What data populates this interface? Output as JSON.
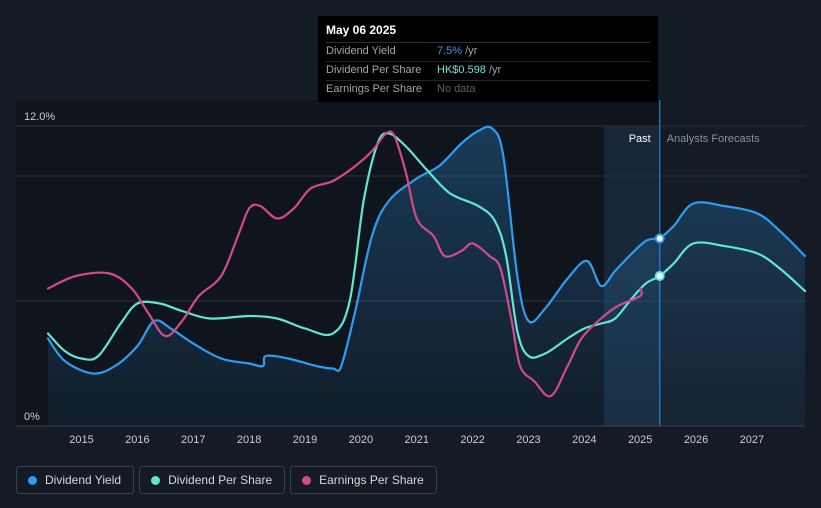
{
  "tooltip": {
    "date": "May 06 2025",
    "rows": [
      {
        "label": "Dividend Yield",
        "value": "7.5%",
        "unit": "/yr"
      },
      {
        "label": "Dividend Per Share",
        "value": "HK$0.598",
        "unit": "/yr"
      },
      {
        "label": "Earnings Per Share",
        "value": "No data",
        "unit": ""
      }
    ]
  },
  "legend": [
    {
      "label": "Dividend Yield",
      "color": "#2e9df0"
    },
    {
      "label": "Dividend Per Share",
      "color": "#62e6d4"
    },
    {
      "label": "Earnings Per Share",
      "color": "#d34a8c"
    }
  ],
  "chart_data": {
    "type": "line",
    "title": "",
    "xlabel": "",
    "ylabel": "",
    "xlim": [
      2014.3,
      2027.95
    ],
    "ylim": [
      0,
      12
    ],
    "x_ticks": [
      "2015",
      "2016",
      "2017",
      "2018",
      "2019",
      "2020",
      "2021",
      "2022",
      "2023",
      "2024",
      "2025",
      "2026",
      "2027"
    ],
    "y_ticks": [
      {
        "value": 12,
        "label": "12.0%"
      },
      {
        "value": 0,
        "label": "0%"
      }
    ],
    "grid": true,
    "past_label": "Past",
    "forecast_label": "Analysts Forecasts",
    "past_band": [
      2024.35,
      2025.35
    ],
    "forecast_start": 2025.35,
    "highlight": {
      "x": 2025.35
    },
    "series": [
      {
        "name": "Dividend Yield",
        "color": "#2e9df0",
        "filled": true,
        "points": [
          [
            2014.4,
            3.5
          ],
          [
            2014.7,
            2.6
          ],
          [
            2015.2,
            2.1
          ],
          [
            2015.6,
            2.4
          ],
          [
            2016.0,
            3.2
          ],
          [
            2016.3,
            4.2
          ],
          [
            2016.6,
            3.9
          ],
          [
            2017.0,
            3.3
          ],
          [
            2017.5,
            2.7
          ],
          [
            2018.0,
            2.5
          ],
          [
            2018.25,
            2.4
          ],
          [
            2018.3,
            2.8
          ],
          [
            2018.7,
            2.7
          ],
          [
            2019.2,
            2.4
          ],
          [
            2019.5,
            2.3
          ],
          [
            2019.65,
            2.4
          ],
          [
            2019.9,
            4.6
          ],
          [
            2020.2,
            7.6
          ],
          [
            2020.5,
            9.0
          ],
          [
            2021.0,
            9.9
          ],
          [
            2021.4,
            10.4
          ],
          [
            2021.8,
            11.3
          ],
          [
            2022.1,
            11.8
          ],
          [
            2022.35,
            11.9
          ],
          [
            2022.55,
            10.8
          ],
          [
            2022.8,
            6.0
          ],
          [
            2023.0,
            4.2
          ],
          [
            2023.3,
            4.7
          ],
          [
            2023.7,
            5.9
          ],
          [
            2024.05,
            6.6
          ],
          [
            2024.3,
            5.6
          ],
          [
            2024.55,
            6.2
          ],
          [
            2024.85,
            6.9
          ],
          [
            2025.1,
            7.4
          ],
          [
            2025.3,
            7.5
          ],
          [
            2025.35,
            7.5
          ],
          [
            2025.6,
            8.0
          ],
          [
            2025.95,
            8.9
          ],
          [
            2026.5,
            8.8
          ],
          [
            2027.1,
            8.5
          ],
          [
            2027.5,
            7.8
          ],
          [
            2027.95,
            6.8
          ]
        ]
      },
      {
        "name": "Dividend Per Share",
        "color": "#62e6d4",
        "filled": false,
        "points": [
          [
            2014.4,
            3.7
          ],
          [
            2014.7,
            3.0
          ],
          [
            2015.0,
            2.7
          ],
          [
            2015.3,
            2.8
          ],
          [
            2015.7,
            4.1
          ],
          [
            2016.0,
            4.9
          ],
          [
            2016.4,
            4.9
          ],
          [
            2016.8,
            4.6
          ],
          [
            2017.3,
            4.3
          ],
          [
            2018.0,
            4.4
          ],
          [
            2018.5,
            4.3
          ],
          [
            2019.0,
            3.9
          ],
          [
            2019.5,
            3.7
          ],
          [
            2019.8,
            5.0
          ],
          [
            2020.05,
            9.0
          ],
          [
            2020.3,
            11.3
          ],
          [
            2020.5,
            11.7
          ],
          [
            2020.8,
            11.2
          ],
          [
            2021.2,
            10.2
          ],
          [
            2021.6,
            9.3
          ],
          [
            2022.1,
            8.8
          ],
          [
            2022.4,
            8.2
          ],
          [
            2022.6,
            6.8
          ],
          [
            2022.8,
            3.8
          ],
          [
            2023.0,
            2.8
          ],
          [
            2023.3,
            2.9
          ],
          [
            2023.7,
            3.5
          ],
          [
            2024.0,
            3.9
          ],
          [
            2024.3,
            4.1
          ],
          [
            2024.55,
            4.3
          ],
          [
            2024.85,
            5.1
          ],
          [
            2025.1,
            5.7
          ],
          [
            2025.35,
            6.0
          ],
          [
            2025.6,
            6.5
          ],
          [
            2025.95,
            7.3
          ],
          [
            2026.5,
            7.2
          ],
          [
            2027.1,
            6.9
          ],
          [
            2027.5,
            6.3
          ],
          [
            2027.95,
            5.4
          ]
        ]
      },
      {
        "name": "Earnings Per Share",
        "color": "#d34a8c",
        "filled": false,
        "points": [
          [
            2014.4,
            5.5
          ],
          [
            2014.9,
            6.0
          ],
          [
            2015.5,
            6.1
          ],
          [
            2015.9,
            5.5
          ],
          [
            2016.2,
            4.5
          ],
          [
            2016.5,
            3.6
          ],
          [
            2016.8,
            4.2
          ],
          [
            2017.1,
            5.2
          ],
          [
            2017.5,
            6.0
          ],
          [
            2017.8,
            7.6
          ],
          [
            2018.0,
            8.7
          ],
          [
            2018.2,
            8.8
          ],
          [
            2018.5,
            8.3
          ],
          [
            2018.8,
            8.7
          ],
          [
            2019.1,
            9.5
          ],
          [
            2019.5,
            9.8
          ],
          [
            2019.9,
            10.4
          ],
          [
            2020.2,
            11.0
          ],
          [
            2020.45,
            11.7
          ],
          [
            2020.6,
            11.6
          ],
          [
            2020.8,
            10.2
          ],
          [
            2021.0,
            8.3
          ],
          [
            2021.3,
            7.6
          ],
          [
            2021.5,
            6.8
          ],
          [
            2021.8,
            7.0
          ],
          [
            2022.0,
            7.3
          ],
          [
            2022.3,
            6.8
          ],
          [
            2022.5,
            6.3
          ],
          [
            2022.7,
            4.2
          ],
          [
            2022.85,
            2.4
          ],
          [
            2023.1,
            1.8
          ],
          [
            2023.4,
            1.2
          ],
          [
            2023.7,
            2.4
          ],
          [
            2023.95,
            3.5
          ],
          [
            2024.3,
            4.3
          ],
          [
            2024.6,
            4.8
          ],
          [
            2025.0,
            5.2
          ],
          [
            2025.0,
            5.5
          ]
        ]
      }
    ]
  }
}
